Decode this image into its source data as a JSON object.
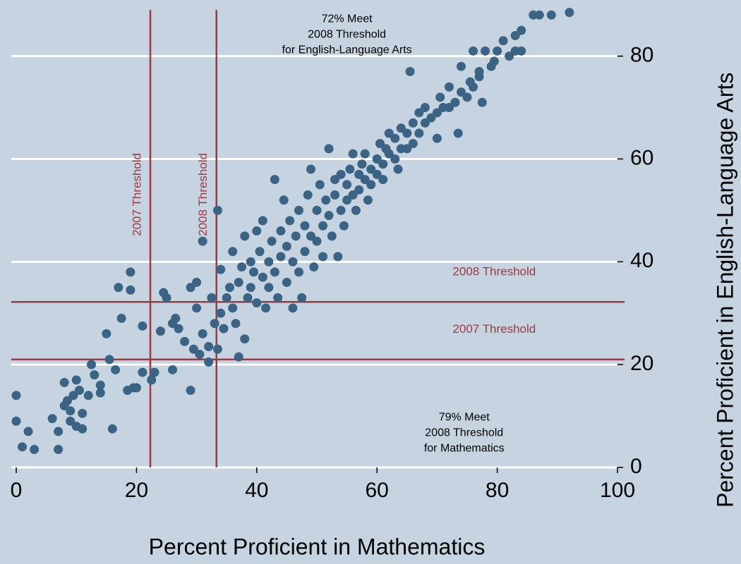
{
  "chart_data": {
    "type": "scatter",
    "xlabel": "Percent Proficient in Mathematics",
    "ylabel": "Percent Proficient in English-Language Arts",
    "xlim": [
      0,
      100
    ],
    "ylim": [
      0,
      89
    ],
    "xticks": [
      0,
      20,
      40,
      60,
      80,
      100
    ],
    "yticks": [
      0,
      20,
      40,
      60,
      80
    ],
    "grid": true,
    "color": "#3b6384",
    "line_color": "#9b3a44",
    "vlines": [
      {
        "value": 22.3,
        "label": "2007 Threshold"
      },
      {
        "value": 33.3,
        "label": "2008 Threshold"
      }
    ],
    "hlines": [
      {
        "value": 32.2,
        "label": "2008 Threshold"
      },
      {
        "value": 21.0,
        "label": "2007 Threshold"
      }
    ],
    "annotations": [
      {
        "x": 55,
        "y": 88,
        "lines": [
          "72% Meet",
          "2008 Threshold",
          "for English-Language Arts"
        ]
      },
      {
        "x": 74.5,
        "y": 10.5,
        "lines": [
          "79% Meet",
          "2008 Threshold",
          "for Mathematics"
        ]
      }
    ],
    "x": [
      0,
      0,
      1,
      2,
      3,
      7,
      6,
      7,
      8,
      8,
      8.5,
      9,
      9,
      9.5,
      10,
      10,
      10.5,
      11,
      11,
      12,
      12.5,
      13,
      14,
      14,
      15,
      15.5,
      16,
      16.5,
      17,
      17.5,
      18.5,
      19,
      19,
      19.5,
      20,
      21,
      21,
      22.5,
      23,
      24,
      24.5,
      25,
      26,
      26,
      26.5,
      27,
      28,
      29,
      29,
      29.5,
      30,
      30,
      30.5,
      31,
      31,
      32,
      32,
      32.5,
      33,
      33.5,
      33.5,
      34,
      34,
      34.5,
      35,
      35.5,
      36,
      36,
      36.5,
      37,
      37,
      37.5,
      38,
      38,
      38.5,
      39,
      39,
      39.5,
      40,
      40,
      40.5,
      41,
      41,
      41.5,
      42,
      42,
      42.5,
      43,
      43,
      43.5,
      44,
      44,
      44.5,
      45,
      45,
      45.5,
      46,
      46,
      46.5,
      47,
      47,
      47.5,
      48,
      48,
      48.5,
      49,
      49,
      49.5,
      50,
      50,
      50.5,
      51,
      51,
      51.5,
      52,
      52,
      52.5,
      53,
      53,
      53.5,
      54,
      54,
      54.5,
      55,
      55,
      55.5,
      56,
      56,
      56.5,
      57,
      57,
      57.5,
      58,
      58,
      58.5,
      59,
      59,
      60,
      60,
      60.5,
      61,
      61,
      61.5,
      62,
      62,
      63,
      63,
      63.5,
      64,
      64,
      65,
      65,
      65.5,
      66,
      66,
      67,
      67,
      68,
      68,
      69,
      70,
      70,
      70.5,
      71,
      72,
      72,
      73,
      73.5,
      74,
      74,
      75,
      75.5,
      76,
      76,
      77,
      77,
      77.5,
      78,
      79,
      79.5,
      80,
      81,
      82,
      83,
      83,
      84,
      84,
      86,
      87,
      89,
      92
    ],
    "values": [
      14,
      9,
      4,
      7,
      3.5,
      3.5,
      9.5,
      7,
      12,
      16.5,
      13,
      9,
      11,
      14,
      17,
      8,
      15,
      10.5,
      7.5,
      14,
      20,
      18,
      16,
      14.5,
      26,
      21,
      7.5,
      19,
      35,
      29,
      15,
      38,
      34.5,
      15.5,
      15.5,
      18.5,
      27.5,
      17,
      18.5,
      26.5,
      34,
      33,
      28,
      19,
      29,
      27,
      24.5,
      35,
      15,
      23,
      36,
      31,
      22,
      44,
      26,
      20.5,
      23.5,
      33,
      28,
      50,
      23,
      38.5,
      30,
      27,
      33,
      35,
      42,
      31,
      28,
      21.5,
      36,
      39,
      45,
      25,
      33,
      40,
      35,
      38,
      46,
      32,
      42,
      37,
      48,
      31,
      40,
      35,
      44,
      38,
      56,
      33,
      41,
      46,
      52,
      36,
      43,
      48,
      40,
      31,
      45,
      50,
      38,
      33,
      47,
      42,
      53,
      45,
      58,
      39,
      50,
      44,
      55,
      47,
      41,
      52,
      49,
      62,
      45,
      53,
      56,
      41,
      50,
      57,
      47,
      55,
      52,
      58,
      53,
      61,
      50,
      57,
      54,
      59,
      56,
      61,
      52,
      58,
      55,
      60,
      57,
      63,
      59,
      56,
      62,
      65,
      61,
      60,
      64,
      58,
      62,
      66,
      65,
      62,
      77,
      67,
      63,
      69,
      65,
      70,
      67,
      68,
      69,
      64,
      72,
      70,
      74,
      70,
      71,
      65,
      73,
      78,
      72,
      75,
      81,
      74,
      76,
      77,
      71,
      81,
      78,
      79,
      81,
      83,
      80,
      84,
      81,
      85,
      81,
      88,
      88,
      88,
      88.5
    ]
  }
}
